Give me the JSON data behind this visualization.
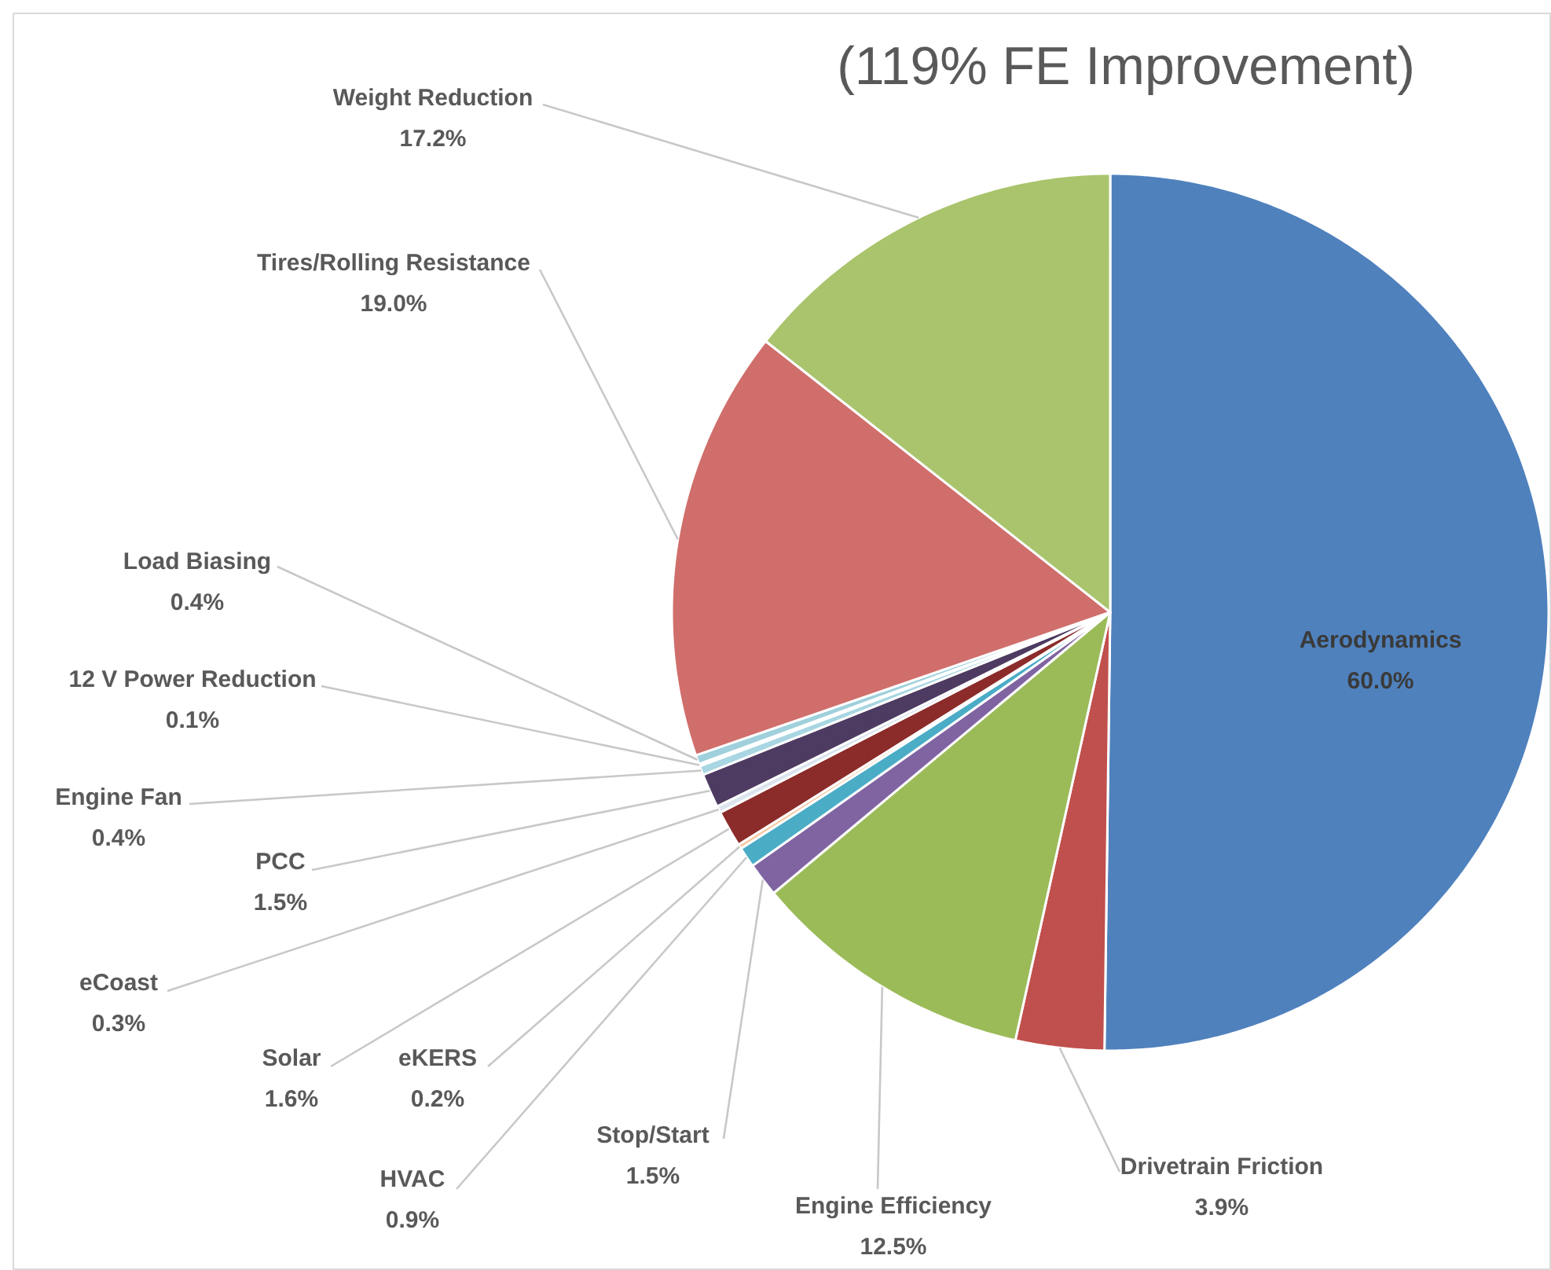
{
  "chart_data": {
    "type": "pie",
    "title": "(119% FE Improvement)",
    "categories": [
      "Aerodynamics",
      "Drivetrain Friction",
      "Engine Efficiency",
      "Stop/Start",
      "HVAC",
      "eKERS",
      "Solar",
      "eCoast",
      "PCC",
      "Engine Fan",
      "12 V Power Reduction",
      "Load Biasing",
      "Tires/Rolling Resistance",
      "Weight Reduction"
    ],
    "values": [
      60.0,
      3.9,
      12.5,
      1.5,
      0.9,
      0.2,
      1.6,
      0.3,
      1.5,
      0.4,
      0.1,
      0.4,
      19.0,
      17.2
    ],
    "value_labels": [
      "60.0%",
      "3.9%",
      "12.5%",
      "1.5%",
      "0.9%",
      "0.2%",
      "1.6%",
      "0.3%",
      "1.5%",
      "0.4%",
      "0.1%",
      "0.4%",
      "19.0%",
      "17.2%"
    ],
    "colors": [
      "#4f81bd",
      "#c0504d",
      "#9bbb59",
      "#8064a2",
      "#4bacc6",
      "#f5c9a3",
      "#8b2c2a",
      "#dce4ee",
      "#4d3b62",
      "#a8d6e2",
      "#276a7c",
      "#9fd0dc",
      "#d06e6b",
      "#a9c46c"
    ]
  }
}
